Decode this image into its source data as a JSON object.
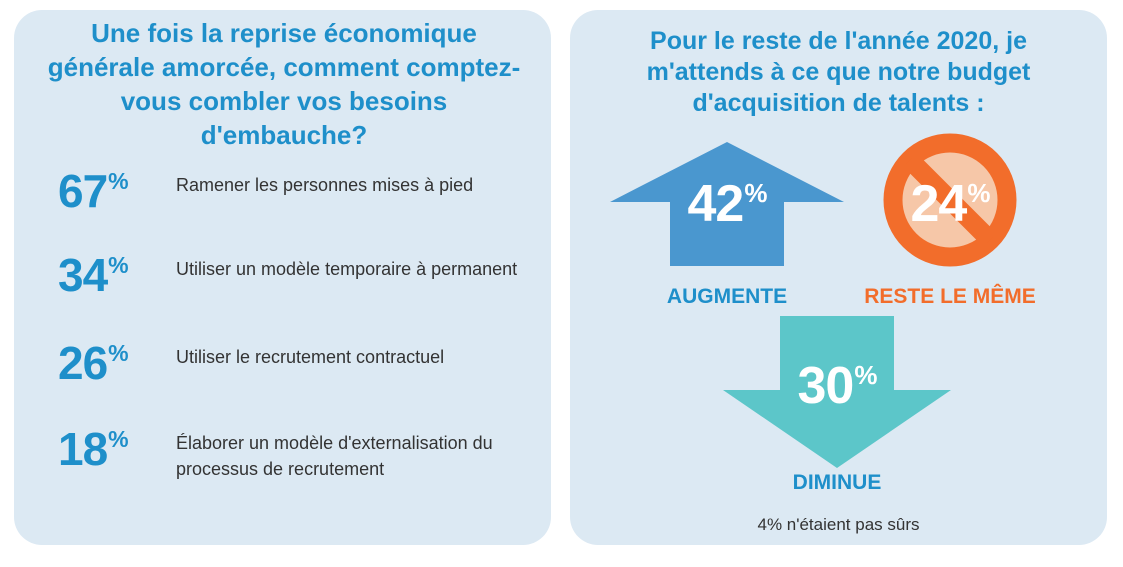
{
  "left": {
    "question": "Une fois la reprise économique générale amorcée, comment comptez-vous combler vos besoins d'embauche?",
    "items": [
      {
        "value": "67",
        "unit": "%",
        "label": "Ramener les personnes mises à pied"
      },
      {
        "value": "34",
        "unit": "%",
        "label": "Utiliser un modèle temporaire à permanent"
      },
      {
        "value": "26",
        "unit": "%",
        "label": "Utiliser le recrutement contractuel"
      },
      {
        "value": "18",
        "unit": "%",
        "label": "Élaborer un modèle d'externalisation du processus de recrutement"
      }
    ]
  },
  "right": {
    "question": "Pour le reste de l'année 2020, je m'attends à ce que notre budget d'acquisition de talents :",
    "increase": {
      "value": "42",
      "unit": "%",
      "label": "AUGMENTE",
      "icon": "up-arrow-icon",
      "color": "#4a97cf"
    },
    "same": {
      "value": "24",
      "unit": "%",
      "label": "RESTE LE MÊME",
      "icon": "no-sign-icon",
      "color": "#f26d2b"
    },
    "decrease": {
      "value": "30",
      "unit": "%",
      "label": "DIMINUE",
      "icon": "down-arrow-icon",
      "color": "#5cc6c9"
    },
    "note": "4% n'étaient pas sûrs"
  },
  "colors": {
    "panel_bg": "#dce9f3",
    "heading_blue": "#1e8fca",
    "up_blue": "#4a97cf",
    "orange": "#f26d2b",
    "teal": "#5cc6c9"
  }
}
